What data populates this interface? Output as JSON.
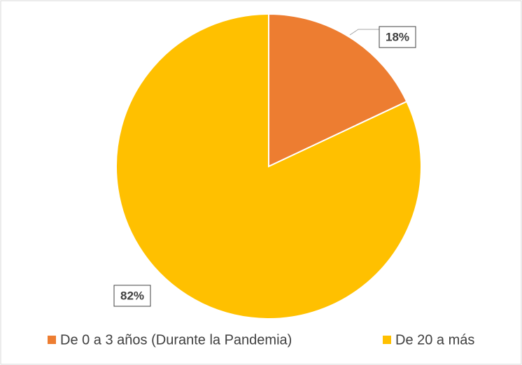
{
  "chart_data": {
    "type": "pie",
    "categories": [
      "De 0 a 3 años (Durante la Pandemia)",
      "De 20 a más"
    ],
    "values": [
      18,
      82
    ],
    "value_labels": [
      "18%",
      "82%"
    ],
    "colors": [
      "#ed7d31",
      "#ffc000"
    ],
    "legend": "bottom"
  }
}
